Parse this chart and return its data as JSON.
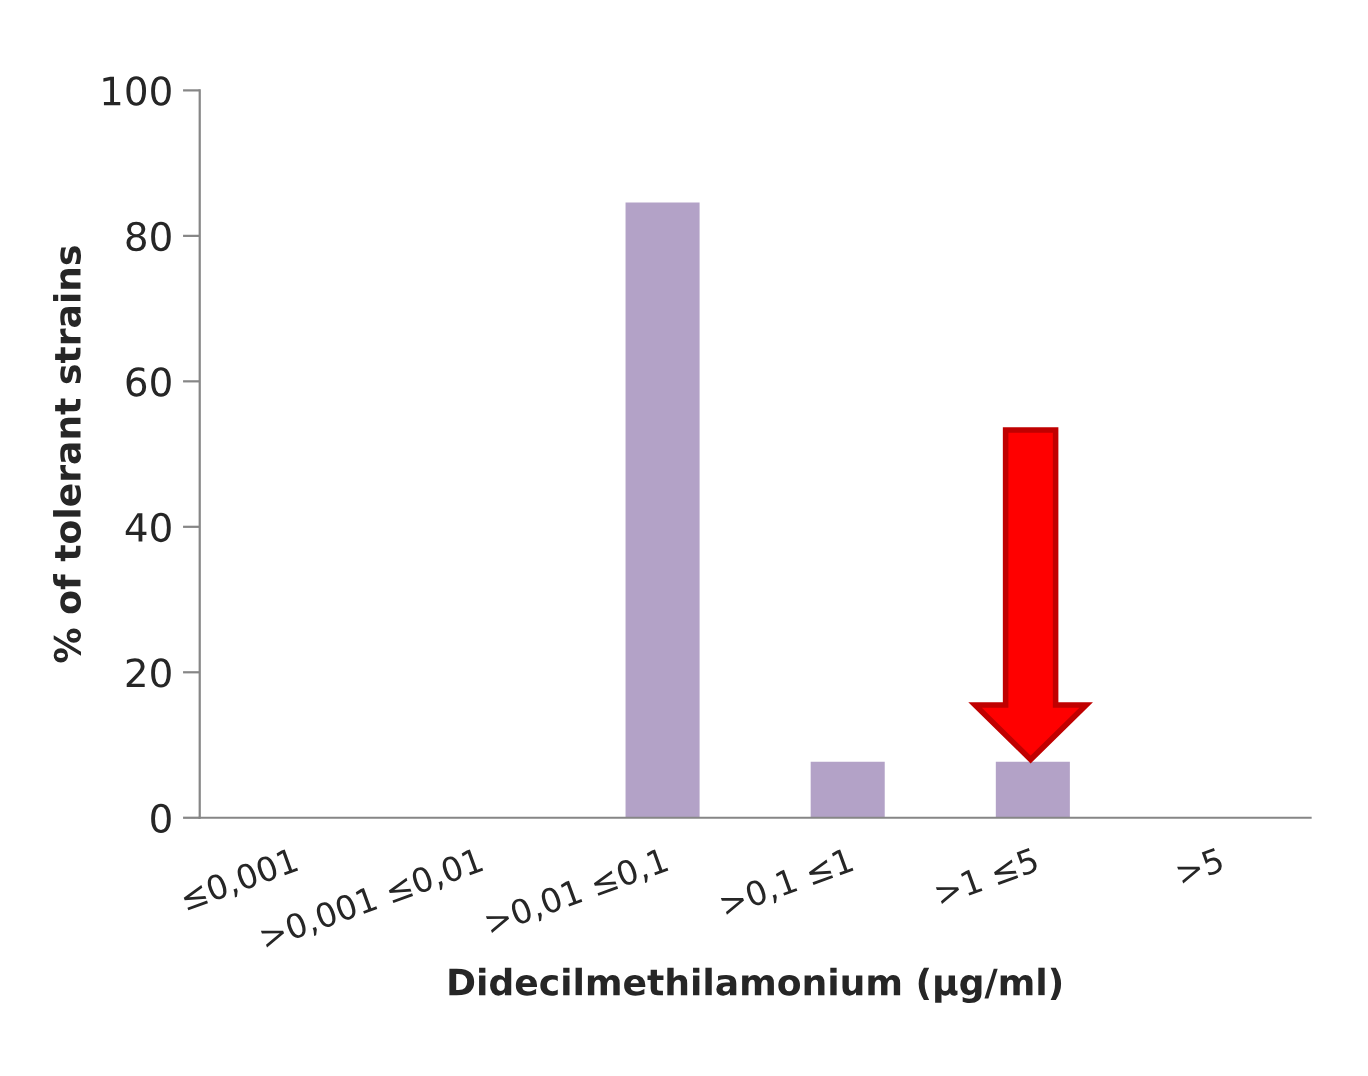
{
  "chart_data": {
    "type": "bar",
    "xlabel": "Didecilmethilamonium (µg/ml)",
    "ylabel": "% of tolerant strains",
    "categories": [
      "≤0,001",
      ">0,001 ≤0,01",
      ">0,01 ≤0,1",
      ">0,1 ≤1",
      ">1 ≤5",
      ">5"
    ],
    "values": [
      0,
      0,
      84.6,
      7.7,
      7.7,
      0
    ],
    "color": "#b3a2c7",
    "ylim": [
      0,
      100
    ],
    "yticks": [
      0,
      20,
      40,
      60,
      80,
      100
    ],
    "grid": false,
    "legend": false
  }
}
